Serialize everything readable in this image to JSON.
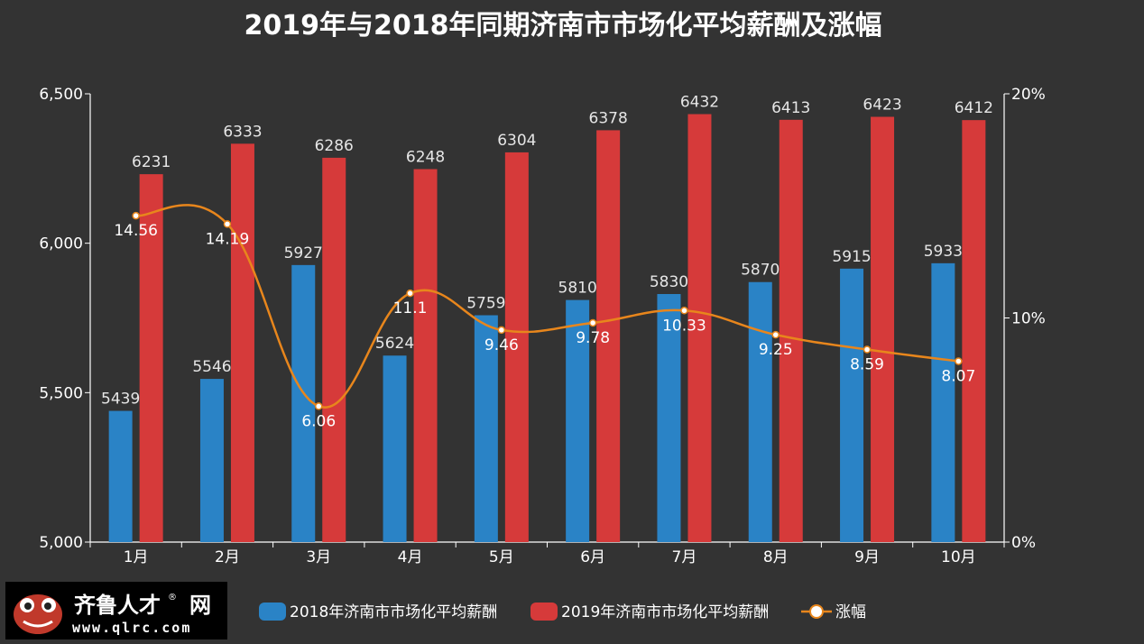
{
  "logo": {
    "name": "齐鲁人才",
    "suffix": "网",
    "url": "www.qlrc.com",
    "registered": "®"
  },
  "chart_data": {
    "type": "bar",
    "title": "2019年与2018年同期济南市市场化平均薪酬及涨幅",
    "categories": [
      "1月",
      "2月",
      "3月",
      "4月",
      "5月",
      "6月",
      "7月",
      "8月",
      "9月",
      "10月"
    ],
    "series": [
      {
        "name": "2018年济南市市场化平均薪酬",
        "type": "bar",
        "color": "#2a83c6",
        "values": [
          5439,
          5546,
          5927,
          5624,
          5759,
          5810,
          5830,
          5870,
          5915,
          5933
        ]
      },
      {
        "name": "2019年济南市市场化平均薪酬",
        "type": "bar",
        "color": "#d63a3a",
        "values": [
          6231,
          6333,
          6286,
          6248,
          6304,
          6378,
          6432,
          6413,
          6423,
          6412
        ]
      },
      {
        "name": "涨幅",
        "type": "line",
        "color": "#e8861c",
        "axis": "right",
        "values": [
          14.56,
          14.19,
          6.06,
          11.1,
          9.46,
          9.78,
          10.33,
          9.25,
          8.59,
          8.07
        ]
      }
    ],
    "y_left": {
      "min": 5000,
      "max": 6500,
      "ticks": [
        5000,
        5500,
        6000,
        6500
      ],
      "tick_labels": [
        "5,000",
        "5,500",
        "6,000",
        "6,500"
      ]
    },
    "y_right": {
      "min": 0,
      "max": 20,
      "ticks": [
        0,
        10,
        20
      ],
      "tick_labels": [
        "0%",
        "10%",
        "20%"
      ]
    },
    "legend": "bottom",
    "grid": false
  }
}
